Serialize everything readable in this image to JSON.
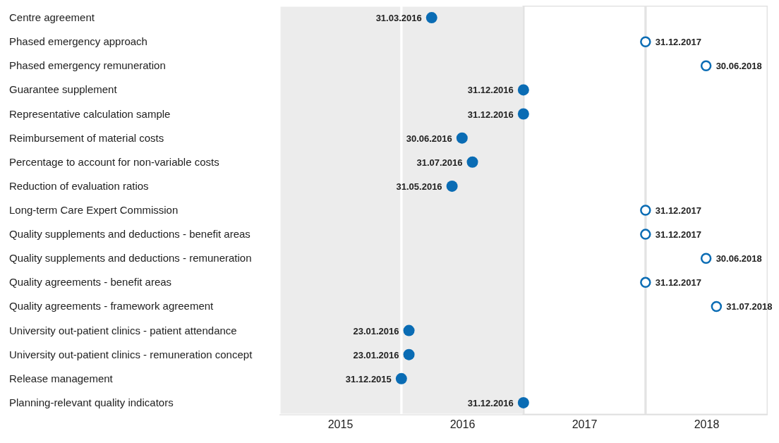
{
  "chart_data": {
    "type": "scatter",
    "orientation": "horizontal",
    "categories": [
      "Centre agreement",
      "Phased emergency approach",
      "Phased emergency remuneration",
      "Guarantee supplement",
      "Representative calculation sample",
      "Reimbursement of material costs",
      "Percentage to account for non-variable costs",
      "Reduction of evaluation ratios",
      "Long-term Care Expert Commission",
      "Quality supplements and deductions - benefit areas",
      "Quality supplements and deductions - remuneration",
      "Quality agreements - benefit areas",
      "Quality agreements - framework agreement",
      "University out-patient clinics - patient attendance",
      "University out-patient clinics - remuneration concept",
      "Release management",
      "Planning-relevant quality indicators"
    ],
    "series": [
      {
        "color": "#0a6cb4",
        "values": [
          2016.247,
          null,
          null,
          2016.999,
          2016.999,
          2016.496,
          2016.581,
          2016.414,
          null,
          null,
          null,
          null,
          null,
          2016.061,
          2016.061,
          2015.999,
          2016.999
        ],
        "value_labels": [
          "31.03.2016",
          null,
          null,
          "31.12.2016",
          "31.12.2016",
          "30.06.2016",
          "31.07.2016",
          "31.05.2016",
          null,
          null,
          null,
          null,
          null,
          "23.01.2016",
          "23.01.2016",
          "31.12.2015",
          "31.12.2016"
        ]
      },
      {
        "color": "#0a6cb4",
        "values": [
          null,
          2017.999,
          2018.495,
          null,
          null,
          null,
          null,
          null,
          2017.999,
          2017.999,
          2018.495,
          2017.999,
          2018.58,
          null,
          null,
          null,
          null
        ],
        "value_labels": [
          null,
          "31.12.2017",
          "30.06.2018",
          null,
          null,
          null,
          null,
          null,
          "31.12.2017",
          "31.12.2017",
          "30.06.2018",
          "31.12.2017",
          "31.07.2018",
          null,
          null,
          null,
          null
        ]
      }
    ],
    "marker": "circle",
    "xlim": [
      2015,
      2019
    ],
    "xticks": [
      {
        "value": 2015.5,
        "label": "2015"
      },
      {
        "value": 2016.5,
        "label": "2016"
      },
      {
        "value": 2017.5,
        "label": "2017"
      },
      {
        "value": 2018.5,
        "label": "2018"
      }
    ],
    "bands": [
      {
        "axis": "x",
        "from": 2015,
        "to": 2016,
        "color": "#ececec"
      },
      {
        "axis": "x",
        "from": 2016,
        "to": 2017,
        "color": "#ececec"
      },
      {
        "axis": "x",
        "from": 2017,
        "to": 2018,
        "color": "#ffffff"
      },
      {
        "axis": "x",
        "from": 2018,
        "to": 2019,
        "color": "#ffffff"
      }
    ]
  }
}
